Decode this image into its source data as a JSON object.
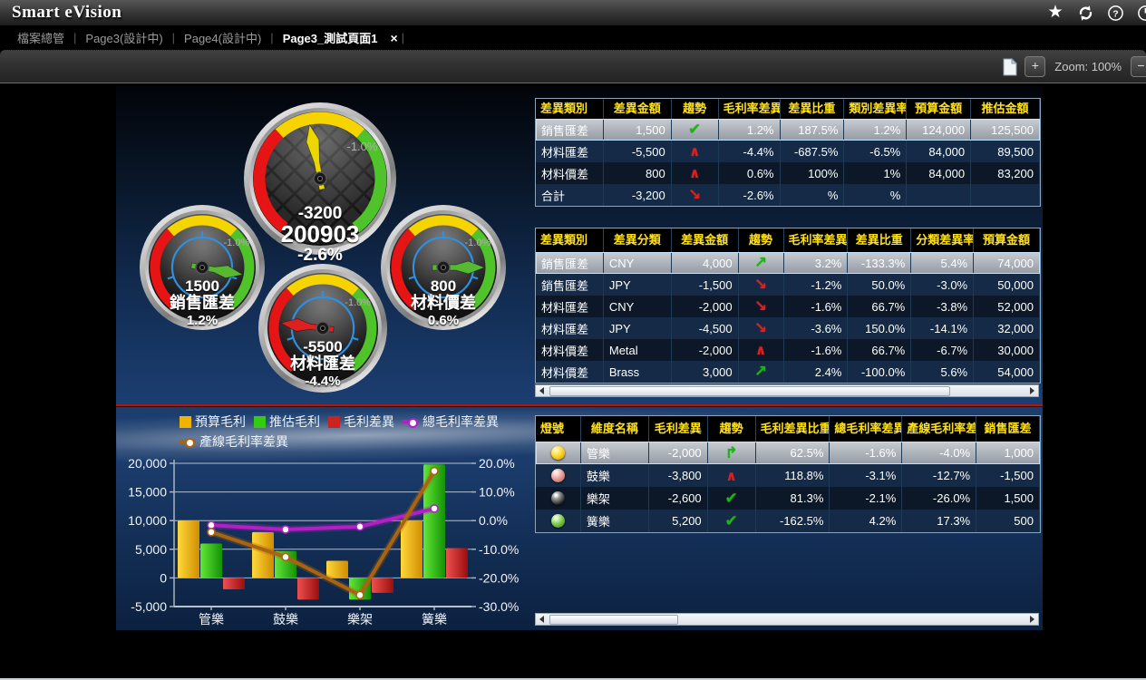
{
  "app": {
    "title": "Smart eVision",
    "title_icons": [
      "favorite-star",
      "refresh",
      "help",
      "power"
    ],
    "star_glyph": "★",
    "help_glyph": "?"
  },
  "tabs": {
    "separator": "|",
    "items": [
      {
        "label": "檔案總管",
        "active": false
      },
      {
        "label": "Page3(設計中)",
        "active": false
      },
      {
        "label": "Page4(設計中)",
        "active": false
      },
      {
        "label": "Page3_測試頁面1",
        "active": true,
        "close_glyph": "×"
      }
    ]
  },
  "toolbar": {
    "zoom_label": "Zoom: 100%",
    "zoom_in_label": "+",
    "zoom_out_label": "−"
  },
  "colors": {
    "table_header_text": "#ffe11a",
    "divider_red": "#a51c1c",
    "trend_green": "#1db514",
    "trend_red": "#e21d1d",
    "selected_row": "#b4bac2"
  },
  "gauges": {
    "main": {
      "value": "-3200",
      "period": "200903",
      "pct": "-2.6%",
      "scale_label": "-1.0%",
      "needle_color": "#ecd800",
      "needle_angle": 349
    },
    "sales": {
      "value": "1500",
      "name": "銷售匯差",
      "pct": "1.2%",
      "scale_label": "-1.0%",
      "needle_color": "#58b832",
      "needle_angle": 100
    },
    "material_price": {
      "value": "800",
      "name": "材料價差",
      "pct": "0.6%",
      "scale_label": "-1.0%",
      "needle_color": "#58b832",
      "needle_angle": 90
    },
    "material_fx": {
      "value": "-5500",
      "name": "材料匯差",
      "pct": "-4.4%",
      "scale_label": "-1.0%",
      "needle_color": "#dd2020",
      "needle_angle": 277
    }
  },
  "table1": {
    "headers": [
      "差異類別",
      "差異金額",
      "趨勢",
      "毛利率差異",
      "差異比重",
      "類別差異率",
      "預算金額",
      "推估金額"
    ],
    "rows": [
      {
        "selected": true,
        "cells": [
          "銷售匯差",
          "1,500",
          "trend:check",
          "1.2%",
          "187.5%",
          "1.2%",
          "124,000",
          "125,500"
        ]
      },
      {
        "selected": false,
        "cells": [
          "材料匯差",
          "-5,500",
          "trend:chevron",
          "-4.4%",
          "-687.5%",
          "-6.5%",
          "84,000",
          "89,500"
        ]
      },
      {
        "selected": false,
        "cells": [
          "材料價差",
          "800",
          "trend:chevron",
          "0.6%",
          "100%",
          "1%",
          "84,000",
          "83,200"
        ]
      },
      {
        "selected": false,
        "cells": [
          "合計",
          "-3,200",
          "trend:downright",
          "-2.6%",
          "%",
          "%",
          "",
          ""
        ]
      }
    ]
  },
  "table2": {
    "headers": [
      "差異類別",
      "差異分類",
      "差異金額",
      "趨勢",
      "毛利率差異",
      "差異比重",
      "分類差異率",
      "預算金額"
    ],
    "rows": [
      {
        "selected": true,
        "cells": [
          "銷售匯差",
          "CNY",
          "4,000",
          "trend:upright",
          "3.2%",
          "-133.3%",
          "5.4%",
          "74,000"
        ]
      },
      {
        "selected": false,
        "cells": [
          "銷售匯差",
          "JPY",
          "-1,500",
          "trend:downright",
          "-1.2%",
          "50.0%",
          "-3.0%",
          "50,000"
        ]
      },
      {
        "selected": false,
        "cells": [
          "材料匯差",
          "CNY",
          "-2,000",
          "trend:downright",
          "-1.6%",
          "66.7%",
          "-3.8%",
          "52,000"
        ]
      },
      {
        "selected": false,
        "cells": [
          "材料匯差",
          "JPY",
          "-4,500",
          "trend:downright",
          "-3.6%",
          "150.0%",
          "-14.1%",
          "32,000"
        ]
      },
      {
        "selected": false,
        "cells": [
          "材料價差",
          "Metal",
          "-2,000",
          "trend:chevron",
          "-1.6%",
          "66.7%",
          "-6.7%",
          "30,000"
        ]
      },
      {
        "selected": false,
        "cells": [
          "材料價差",
          "Brass",
          "3,000",
          "trend:upright",
          "2.4%",
          "-100.0%",
          "5.6%",
          "54,000"
        ]
      }
    ]
  },
  "table3": {
    "headers": [
      "燈號",
      "維度名稱",
      "毛利差異",
      "趨勢",
      "毛利差異比重",
      "總毛利率差異",
      "產線毛利率差!",
      "銷售匯差"
    ],
    "rows": [
      {
        "selected": true,
        "cells": [
          "lamp:yellow",
          "管樂",
          "-2,000",
          "trend:turnup",
          "62.5%",
          "-1.6%",
          "-4.0%",
          "1,000"
        ]
      },
      {
        "selected": false,
        "cells": [
          "lamp:pink",
          "鼓樂",
          "-3,800",
          "trend:chevron",
          "118.8%",
          "-3.1%",
          "-12.7%",
          "-1,500"
        ]
      },
      {
        "selected": false,
        "cells": [
          "lamp:dark",
          "樂架",
          "-2,600",
          "trend:check",
          "81.3%",
          "-2.1%",
          "-26.0%",
          "1,500"
        ]
      },
      {
        "selected": false,
        "cells": [
          "lamp:green",
          "簧樂",
          "5,200",
          "trend:check",
          "-162.5%",
          "4.2%",
          "17.3%",
          "500"
        ]
      }
    ]
  },
  "chart_data": {
    "type": "bar",
    "subtype": "combo-bar-line",
    "categories": [
      "管樂",
      "鼓樂",
      "樂架",
      "簧樂"
    ],
    "series": [
      {
        "name": "預算毛利",
        "kind": "bar",
        "color": "#f0b400",
        "axis": "left",
        "values": [
          10000,
          8000,
          3000,
          10000
        ]
      },
      {
        "name": "推估毛利",
        "kind": "bar",
        "color": "#33cc11",
        "axis": "left",
        "values": [
          6000,
          4700,
          -3800,
          19800
        ]
      },
      {
        "name": "毛利差異",
        "kind": "bar",
        "color": "#cc2222",
        "axis": "left",
        "values": [
          -2000,
          -3800,
          -2600,
          5200
        ]
      },
      {
        "name": "總毛利率差異",
        "kind": "line",
        "color": "#b31fc4",
        "axis": "right",
        "values": [
          -1.6,
          -3.1,
          -2.1,
          4.2
        ]
      },
      {
        "name": "產線毛利率差異",
        "kind": "line",
        "color": "#a9640f",
        "axis": "right",
        "values": [
          -4.0,
          -12.7,
          -26.0,
          17.3
        ]
      }
    ],
    "left_axis": {
      "min": -5000,
      "max": 20000,
      "tick_labels": [
        "20,000",
        "15,000",
        "10,000",
        "5,000",
        "0",
        "-5,000"
      ]
    },
    "right_axis": {
      "min": -30,
      "max": 20,
      "tick_labels": [
        "20.0%",
        "10.0%",
        "0.0%",
        "-10.0%",
        "-20.0%",
        "-30.0%"
      ]
    },
    "grid": true,
    "legend_position": "top"
  }
}
